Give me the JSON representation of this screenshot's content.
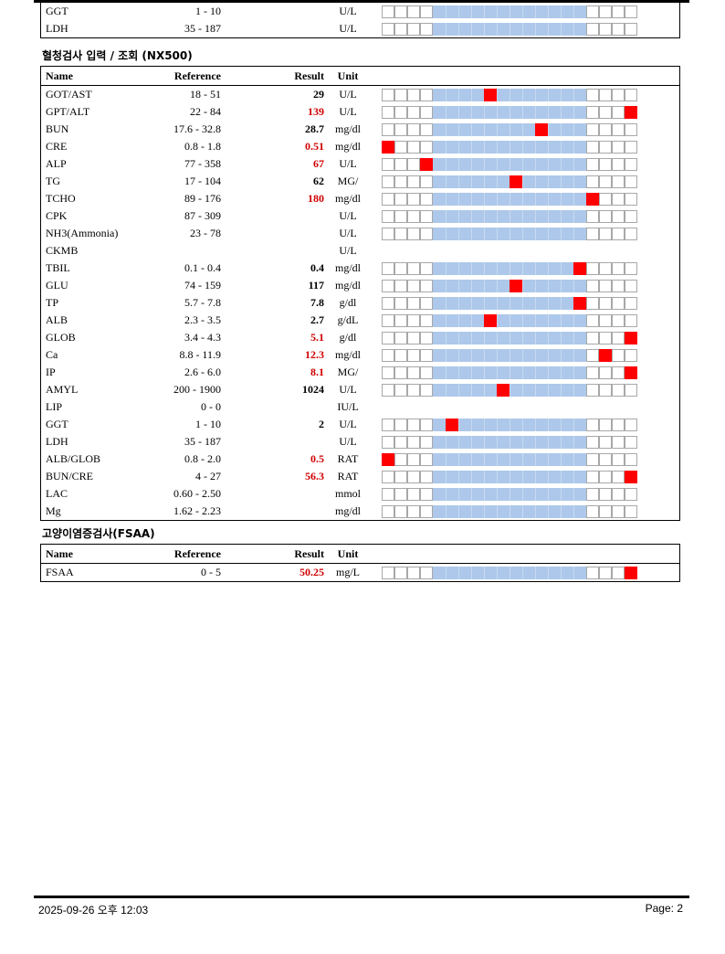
{
  "top_rows": [
    {
      "name": "GGT",
      "ref": "1 - 10",
      "result": "",
      "unit": "U/L",
      "hi": false,
      "marker": null
    },
    {
      "name": "LDH",
      "ref": "35 - 187",
      "result": "",
      "unit": "U/L",
      "hi": false,
      "marker": null
    }
  ],
  "section1": {
    "title": "혈청검사 입력 / 조회 (NX500)",
    "headers": {
      "name": "Name",
      "reference": "Reference",
      "result": "Result",
      "unit": "Unit"
    },
    "rows": [
      {
        "name": "GOT/AST",
        "ref": "18 - 51",
        "result": "29",
        "unit": "U/L",
        "hi": false,
        "marker": 8
      },
      {
        "name": "GPT/ALT",
        "ref": "22 - 84",
        "result": "139",
        "unit": "U/L",
        "hi": true,
        "marker": 19
      },
      {
        "name": "BUN",
        "ref": "17.6 - 32.8",
        "result": "28.7",
        "unit": "mg/dl",
        "hi": false,
        "marker": 12
      },
      {
        "name": "CRE",
        "ref": "0.8 - 1.8",
        "result": "0.51",
        "unit": "mg/dl",
        "hi": true,
        "marker": 0
      },
      {
        "name": "ALP",
        "ref": "77 - 358",
        "result": "67",
        "unit": "U/L",
        "hi": true,
        "marker": 3
      },
      {
        "name": "TG",
        "ref": "17 - 104",
        "result": "62",
        "unit": "MG/",
        "hi": false,
        "marker": 10
      },
      {
        "name": "TCHO",
        "ref": "89 - 176",
        "result": "180",
        "unit": "mg/dl",
        "hi": true,
        "marker": 16
      },
      {
        "name": "CPK",
        "ref": "87 - 309",
        "result": "",
        "unit": "U/L",
        "hi": false,
        "marker": null
      },
      {
        "name": "NH3(Ammonia)",
        "ref": "23 - 78",
        "result": "",
        "unit": "U/L",
        "hi": false,
        "marker": null
      },
      {
        "name": "CKMB",
        "ref": "",
        "result": "",
        "unit": "U/L",
        "hi": false,
        "marker": null,
        "nogauge": true
      },
      {
        "name": "TBIL",
        "ref": "0.1 - 0.4",
        "result": "0.4",
        "unit": "mg/dl",
        "hi": false,
        "marker": 15
      },
      {
        "name": "GLU",
        "ref": "74 - 159",
        "result": "117",
        "unit": "mg/dl",
        "hi": false,
        "marker": 10
      },
      {
        "name": "TP",
        "ref": "5.7 - 7.8",
        "result": "7.8",
        "unit": "g/dl",
        "hi": false,
        "marker": 15
      },
      {
        "name": "ALB",
        "ref": "2.3 - 3.5",
        "result": "2.7",
        "unit": "g/dL",
        "hi": false,
        "marker": 8
      },
      {
        "name": "GLOB",
        "ref": "3.4 - 4.3",
        "result": "5.1",
        "unit": "g/dl",
        "hi": true,
        "marker": 19
      },
      {
        "name": "Ca",
        "ref": "8.8 - 11.9",
        "result": "12.3",
        "unit": "mg/dl",
        "hi": true,
        "marker": 17
      },
      {
        "name": "IP",
        "ref": "2.6 - 6.0",
        "result": "8.1",
        "unit": "MG/",
        "hi": true,
        "marker": 19
      },
      {
        "name": "AMYL",
        "ref": "200 - 1900",
        "result": "1024",
        "unit": "U/L",
        "hi": false,
        "marker": 9
      },
      {
        "name": "LIP",
        "ref": "0 - 0",
        "result": "",
        "unit": "IU/L",
        "hi": false,
        "marker": null,
        "nogauge": true
      },
      {
        "name": "GGT",
        "ref": "1 - 10",
        "result": "2",
        "unit": "U/L",
        "hi": false,
        "marker": 5
      },
      {
        "name": "LDH",
        "ref": "35 - 187",
        "result": "",
        "unit": "U/L",
        "hi": false,
        "marker": null
      },
      {
        "name": "ALB/GLOB",
        "ref": "0.8 - 2.0",
        "result": "0.5",
        "unit": "RAT",
        "hi": true,
        "marker": 0
      },
      {
        "name": "BUN/CRE",
        "ref": "4 - 27",
        "result": "56.3",
        "unit": "RAT",
        "hi": true,
        "marker": 19
      },
      {
        "name": "LAC",
        "ref": "0.60 - 2.50",
        "result": "",
        "unit": "mmol",
        "hi": false,
        "marker": null
      },
      {
        "name": "Mg",
        "ref": "1.62 - 2.23",
        "result": "",
        "unit": "mg/dl",
        "hi": false,
        "marker": null
      }
    ]
  },
  "section2": {
    "title": "고양이염증검사(FSAA)",
    "headers": {
      "name": "Name",
      "reference": "Reference",
      "result": "Result",
      "unit": "Unit"
    },
    "rows": [
      {
        "name": "FSAA",
        "ref": "0 - 5",
        "result": "50.25",
        "unit": "mg/L",
        "hi": true,
        "marker": 19
      }
    ]
  },
  "footer": {
    "date": "2025-09-26 오후 12:03",
    "page": "Page: 2"
  }
}
